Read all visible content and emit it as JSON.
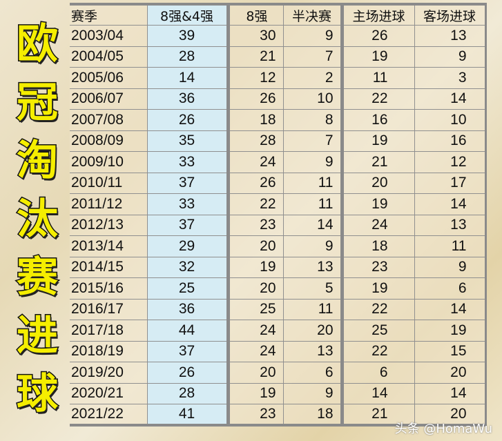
{
  "title_chars": [
    "欧",
    "冠",
    "淘",
    "汰",
    "赛",
    "进",
    "球"
  ],
  "watermark": "头条 @HomaWu",
  "colors": {
    "title_fill": "#f5ee00",
    "highlight_column": "#d6ecf4"
  },
  "chart_data": {
    "type": "table",
    "title": "欧冠淘汰赛进球",
    "columns": [
      "赛季",
      "8强&4强",
      "8强",
      "半决赛",
      "主场进球",
      "客场进球"
    ],
    "rows": [
      [
        "2003/04",
        "39",
        "30",
        "9",
        "26",
        "13"
      ],
      [
        "2004/05",
        "28",
        "21",
        "7",
        "19",
        "9"
      ],
      [
        "2005/06",
        "14",
        "12",
        "2",
        "11",
        "3"
      ],
      [
        "2006/07",
        "36",
        "26",
        "10",
        "22",
        "14"
      ],
      [
        "2007/08",
        "26",
        "18",
        "8",
        "16",
        "10"
      ],
      [
        "2008/09",
        "35",
        "28",
        "7",
        "19",
        "16"
      ],
      [
        "2009/10",
        "33",
        "24",
        "9",
        "21",
        "12"
      ],
      [
        "2010/11",
        "37",
        "26",
        "11",
        "20",
        "17"
      ],
      [
        "2011/12",
        "33",
        "22",
        "11",
        "19",
        "14"
      ],
      [
        "2012/13",
        "37",
        "23",
        "14",
        "24",
        "13"
      ],
      [
        "2013/14",
        "29",
        "20",
        "9",
        "18",
        "11"
      ],
      [
        "2014/15",
        "32",
        "19",
        "13",
        "23",
        "9"
      ],
      [
        "2015/16",
        "25",
        "20",
        "5",
        "19",
        "6"
      ],
      [
        "2016/17",
        "36",
        "25",
        "11",
        "22",
        "14"
      ],
      [
        "2017/18",
        "44",
        "24",
        "20",
        "25",
        "19"
      ],
      [
        "2018/19",
        "37",
        "24",
        "13",
        "22",
        "15"
      ],
      [
        "2019/20",
        "26",
        "20",
        "6",
        "6",
        "20"
      ],
      [
        "2020/21",
        "28",
        "19",
        "9",
        "14",
        "14"
      ],
      [
        "2021/22",
        "41",
        "23",
        "18",
        "21",
        "20"
      ]
    ]
  }
}
